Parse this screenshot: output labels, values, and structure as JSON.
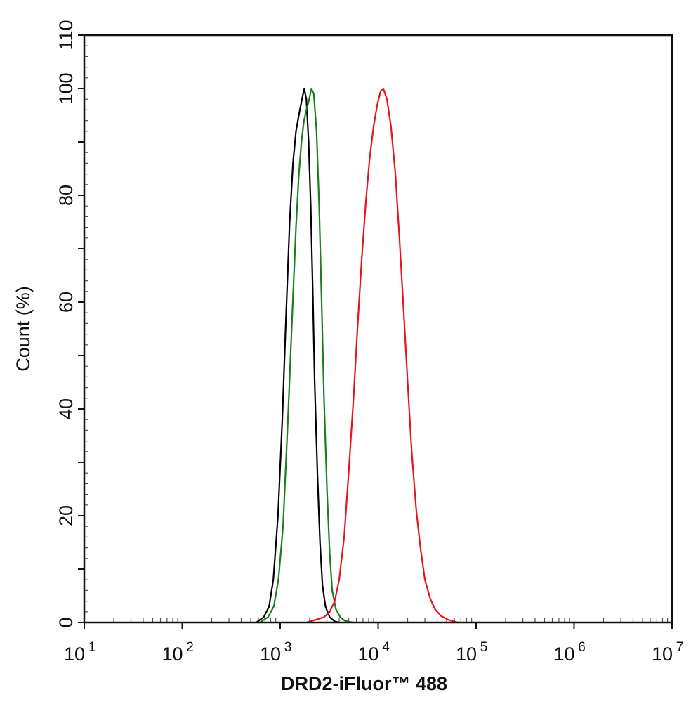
{
  "chart_data": {
    "type": "line",
    "title": "",
    "xlabel": "DRD2-iFluor™ 488",
    "ylabel": "Count  (%)",
    "x_scale": "log",
    "x_axis_base": "10",
    "xlim": [
      10,
      10000000
    ],
    "ylim": [
      0,
      110
    ],
    "x_tick_exponents": [
      "1",
      "2",
      "3",
      "4",
      "5",
      "6",
      "7"
    ],
    "y_ticks": [
      "0",
      "20",
      "40",
      "60",
      "80",
      "100",
      "110"
    ],
    "y_tick_values": [
      0,
      20,
      40,
      60,
      80,
      100,
      110
    ],
    "grid": false,
    "legend": "none",
    "series": [
      {
        "color": "#000000",
        "points": [
          [
            570,
            0
          ],
          [
            680,
            1
          ],
          [
            770,
            3
          ],
          [
            850,
            8
          ],
          [
            950,
            20
          ],
          [
            1050,
            38
          ],
          [
            1150,
            58
          ],
          [
            1250,
            75
          ],
          [
            1350,
            86
          ],
          [
            1450,
            92
          ],
          [
            1550,
            95
          ],
          [
            1650,
            97.5
          ],
          [
            1760,
            100
          ],
          [
            1850,
            98
          ],
          [
            1950,
            90
          ],
          [
            2050,
            78
          ],
          [
            2150,
            62
          ],
          [
            2250,
            45
          ],
          [
            2400,
            28
          ],
          [
            2550,
            15
          ],
          [
            2700,
            7
          ],
          [
            2900,
            3
          ],
          [
            3200,
            1
          ],
          [
            3600,
            0.2
          ],
          [
            4000,
            0
          ]
        ]
      },
      {
        "color": "#1a7f1a",
        "points": [
          [
            620,
            0
          ],
          [
            750,
            1
          ],
          [
            860,
            3
          ],
          [
            960,
            8
          ],
          [
            1070,
            18
          ],
          [
            1200,
            38
          ],
          [
            1330,
            58
          ],
          [
            1450,
            74
          ],
          [
            1550,
            84
          ],
          [
            1650,
            90
          ],
          [
            1750,
            94
          ],
          [
            1850,
            96
          ],
          [
            1950,
            97.5
          ],
          [
            2080,
            100
          ],
          [
            2200,
            99
          ],
          [
            2350,
            92
          ],
          [
            2500,
            78
          ],
          [
            2650,
            60
          ],
          [
            2800,
            42
          ],
          [
            3000,
            25
          ],
          [
            3200,
            13
          ],
          [
            3400,
            6
          ],
          [
            3700,
            2.5
          ],
          [
            4100,
            1
          ],
          [
            4600,
            0.3
          ],
          [
            5500,
            0
          ]
        ]
      },
      {
        "color": "#e8141c",
        "points": [
          [
            1850,
            0
          ],
          [
            2300,
            0.5
          ],
          [
            2800,
            1
          ],
          [
            3200,
            2
          ],
          [
            3600,
            4
          ],
          [
            4000,
            8
          ],
          [
            4500,
            16
          ],
          [
            5000,
            28
          ],
          [
            5600,
            42
          ],
          [
            6200,
            56
          ],
          [
            6800,
            68
          ],
          [
            7500,
            79
          ],
          [
            8200,
            87
          ],
          [
            9000,
            93
          ],
          [
            9800,
            97
          ],
          [
            10600,
            99.5
          ],
          [
            11300,
            100
          ],
          [
            12300,
            98
          ],
          [
            13500,
            93
          ],
          [
            15000,
            84
          ],
          [
            16500,
            72
          ],
          [
            18000,
            60
          ],
          [
            20000,
            45
          ],
          [
            22000,
            32
          ],
          [
            24500,
            21
          ],
          [
            27000,
            14
          ],
          [
            30000,
            8
          ],
          [
            34000,
            4.5
          ],
          [
            38000,
            2.5
          ],
          [
            44000,
            1.2
          ],
          [
            52000,
            0.5
          ],
          [
            65000,
            0
          ]
        ]
      }
    ]
  }
}
